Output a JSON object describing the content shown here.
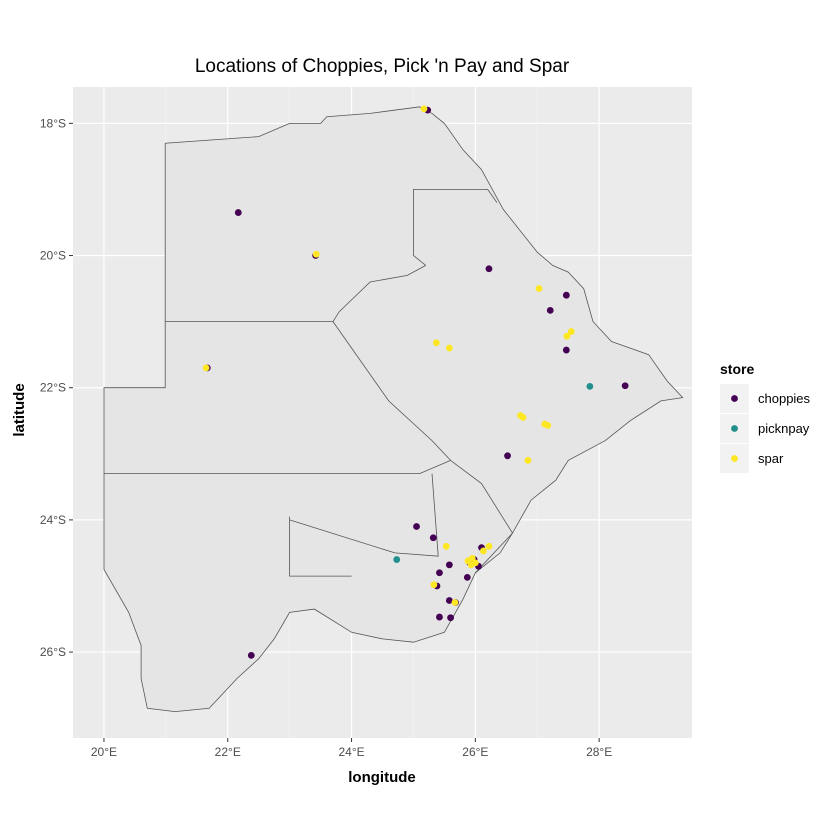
{
  "chart_data": {
    "type": "scatter",
    "title": "Locations of Choppies, Pick 'n Pay and Spar",
    "xlabel": "longitude",
    "ylabel": "latitude",
    "xlim": [
      19.5,
      29.5
    ],
    "ylim": [
      -27.3,
      -17.45
    ],
    "x_ticks": [
      20,
      22,
      24,
      26,
      28
    ],
    "x_tick_labels": [
      "20°E",
      "22°E",
      "24°E",
      "26°E",
      "28°E"
    ],
    "y_ticks": [
      -18,
      -20,
      -22,
      -24,
      -26
    ],
    "y_tick_labels": [
      "18°S",
      "20°S",
      "22°S",
      "24°S",
      "26°S"
    ],
    "grid": true,
    "legend": {
      "title": "store",
      "position": "right",
      "entries": [
        "choppies",
        "picknpay",
        "spar"
      ]
    },
    "series": [
      {
        "name": "choppies",
        "color": "#440154",
        "points": [
          [
            25.23,
            -17.8
          ],
          [
            22.17,
            -19.35
          ],
          [
            23.42,
            -20.0
          ],
          [
            26.22,
            -20.2
          ],
          [
            27.47,
            -20.6
          ],
          [
            27.21,
            -20.83
          ],
          [
            27.47,
            -21.43
          ],
          [
            28.42,
            -21.97
          ],
          [
            21.67,
            -21.7
          ],
          [
            26.52,
            -23.03
          ],
          [
            25.05,
            -24.1
          ],
          [
            25.32,
            -24.27
          ],
          [
            25.58,
            -24.68
          ],
          [
            25.42,
            -24.8
          ],
          [
            26.1,
            -24.42
          ],
          [
            25.91,
            -24.65
          ],
          [
            25.98,
            -24.6
          ],
          [
            26.05,
            -24.7
          ],
          [
            25.87,
            -24.87
          ],
          [
            25.38,
            -25.0
          ],
          [
            25.58,
            -25.22
          ],
          [
            25.68,
            -25.25
          ],
          [
            25.6,
            -25.48
          ],
          [
            25.42,
            -25.47
          ],
          [
            22.38,
            -26.05
          ]
        ]
      },
      {
        "name": "picknpay",
        "color": "#21908C",
        "points": [
          [
            27.85,
            -21.98
          ],
          [
            24.73,
            -24.6
          ]
        ]
      },
      {
        "name": "spar",
        "color": "#FDE725",
        "points": [
          [
            25.17,
            -17.78
          ],
          [
            23.43,
            -19.98
          ],
          [
            21.65,
            -21.7
          ],
          [
            27.03,
            -20.5
          ],
          [
            27.55,
            -21.15
          ],
          [
            27.48,
            -21.22
          ],
          [
            25.37,
            -21.32
          ],
          [
            25.58,
            -21.4
          ],
          [
            26.73,
            -22.42
          ],
          [
            26.77,
            -22.45
          ],
          [
            27.12,
            -22.55
          ],
          [
            27.17,
            -22.57
          ],
          [
            26.85,
            -23.1
          ],
          [
            25.53,
            -24.4
          ],
          [
            26.22,
            -24.4
          ],
          [
            26.13,
            -24.47
          ],
          [
            25.95,
            -24.58
          ],
          [
            25.88,
            -24.62
          ],
          [
            25.93,
            -24.68
          ],
          [
            26.0,
            -24.65
          ],
          [
            25.33,
            -24.98
          ],
          [
            25.67,
            -25.25
          ]
        ]
      }
    ],
    "map": {
      "country_outline": [
        [
          20.0,
          -24.75
        ],
        [
          20.0,
          -22.0
        ],
        [
          20.99,
          -22.0
        ],
        [
          20.99,
          -18.3
        ],
        [
          22.5,
          -18.2
        ],
        [
          23.0,
          -18.0
        ],
        [
          23.5,
          -18.0
        ],
        [
          23.6,
          -17.9
        ],
        [
          24.3,
          -17.85
        ],
        [
          25.1,
          -17.75
        ],
        [
          25.3,
          -17.85
        ],
        [
          25.5,
          -18.0
        ],
        [
          25.8,
          -18.4
        ],
        [
          26.1,
          -18.7
        ],
        [
          26.45,
          -19.3
        ],
        [
          27.0,
          -19.95
        ],
        [
          27.25,
          -20.15
        ],
        [
          27.5,
          -20.25
        ],
        [
          27.75,
          -20.5
        ],
        [
          27.9,
          -21.0
        ],
        [
          28.2,
          -21.3
        ],
        [
          28.5,
          -21.4
        ],
        [
          28.8,
          -21.5
        ],
        [
          29.1,
          -21.9
        ],
        [
          29.35,
          -22.15
        ],
        [
          29.0,
          -22.2
        ],
        [
          28.5,
          -22.5
        ],
        [
          28.1,
          -22.8
        ],
        [
          27.5,
          -23.1
        ],
        [
          27.3,
          -23.4
        ],
        [
          26.9,
          -23.7
        ],
        [
          26.6,
          -24.2
        ],
        [
          26.4,
          -24.5
        ],
        [
          26.0,
          -24.8
        ],
        [
          25.8,
          -25.2
        ],
        [
          25.5,
          -25.7
        ],
        [
          25.0,
          -25.85
        ],
        [
          24.5,
          -25.8
        ],
        [
          24.0,
          -25.7
        ],
        [
          23.4,
          -25.35
        ],
        [
          23.0,
          -25.4
        ],
        [
          22.75,
          -25.8
        ],
        [
          22.5,
          -26.1
        ],
        [
          22.15,
          -26.4
        ],
        [
          21.7,
          -26.85
        ],
        [
          21.15,
          -26.9
        ],
        [
          20.7,
          -26.85
        ],
        [
          20.6,
          -26.4
        ],
        [
          20.6,
          -25.9
        ],
        [
          20.4,
          -25.4
        ],
        [
          20.0,
          -24.75
        ]
      ],
      "districts": [
        [
          [
            20.99,
            -21.0
          ],
          [
            23.7,
            -21.0
          ]
        ],
        [
          [
            23.7,
            -21.0
          ],
          [
            23.8,
            -20.85
          ],
          [
            24.3,
            -20.4
          ],
          [
            24.9,
            -20.3
          ],
          [
            25.2,
            -20.15
          ]
        ],
        [
          [
            23.7,
            -21.0
          ],
          [
            24.6,
            -22.2
          ],
          [
            25.3,
            -22.8
          ],
          [
            25.6,
            -23.1
          ]
        ],
        [
          [
            25.2,
            -20.15
          ],
          [
            25.0,
            -20.0
          ],
          [
            25.0,
            -19.0
          ],
          [
            26.2,
            -19.0
          ],
          [
            26.35,
            -19.2
          ]
        ],
        [
          [
            20.0,
            -23.3
          ],
          [
            25.1,
            -23.3
          ],
          [
            25.6,
            -23.1
          ]
        ],
        [
          [
            23.0,
            -23.95
          ],
          [
            23.0,
            -24.85
          ],
          [
            24.0,
            -24.85
          ]
        ],
        [
          [
            23.0,
            -24.0
          ],
          [
            24.7,
            -24.5
          ],
          [
            25.4,
            -24.55
          ],
          [
            25.3,
            -23.3
          ]
        ],
        [
          [
            26.0,
            -24.8
          ],
          [
            26.6,
            -24.2
          ]
        ],
        [
          [
            25.6,
            -23.1
          ],
          [
            26.1,
            -23.45
          ],
          [
            26.6,
            -24.2
          ]
        ]
      ]
    }
  }
}
